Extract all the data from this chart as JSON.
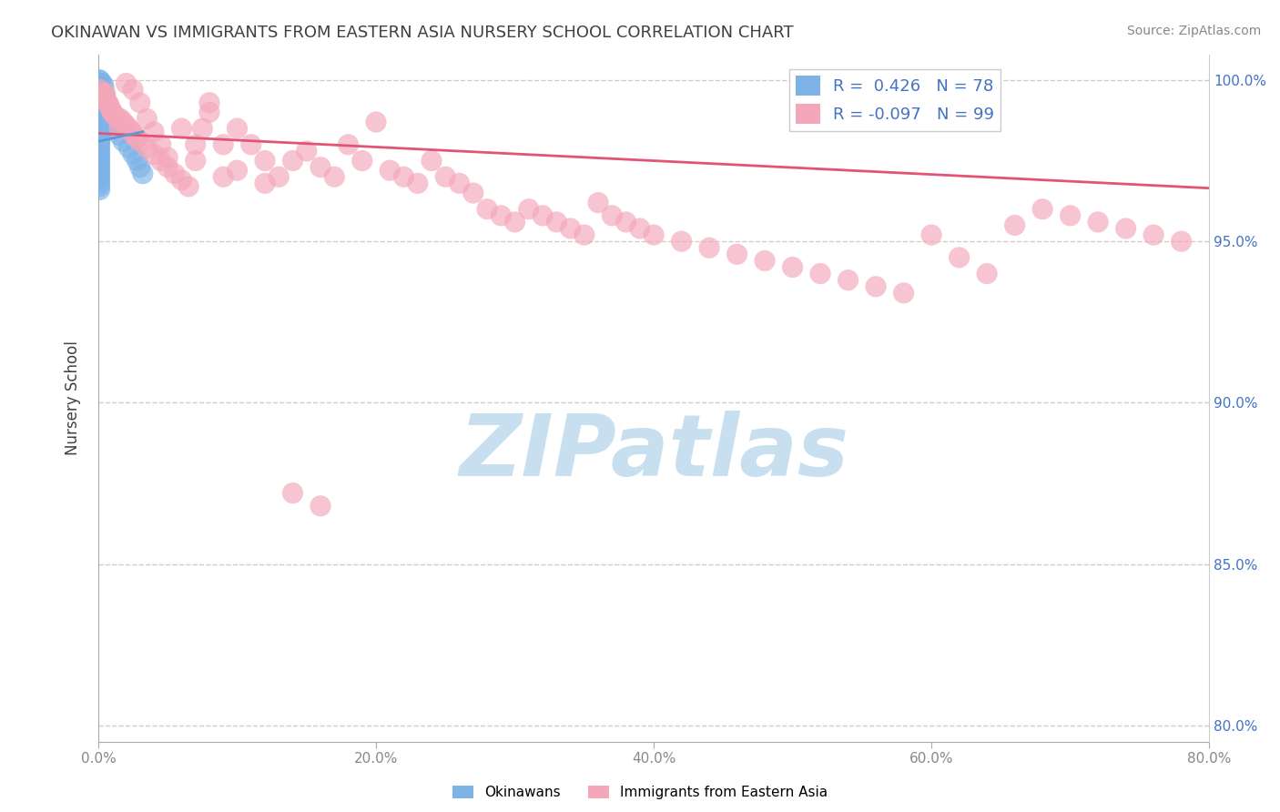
{
  "title": "OKINAWAN VS IMMIGRANTS FROM EASTERN ASIA NURSERY SCHOOL CORRELATION CHART",
  "source": "Source: ZipAtlas.com",
  "ylabel": "Nursery School",
  "xlim": [
    0.0,
    0.8
  ],
  "ylim": [
    0.795,
    1.008
  ],
  "xtick_labels": [
    "0.0%",
    "20.0%",
    "40.0%",
    "60.0%",
    "80.0%"
  ],
  "xtick_vals": [
    0.0,
    0.2,
    0.4,
    0.6,
    0.8
  ],
  "ytick_labels": [
    "80.0%",
    "85.0%",
    "90.0%",
    "95.0%",
    "100.0%"
  ],
  "ytick_vals": [
    0.8,
    0.85,
    0.9,
    0.95,
    1.0
  ],
  "okinawan_color": "#7eb3e8",
  "immigrant_color": "#f4a7b9",
  "okinawan_R": 0.426,
  "okinawan_N": 78,
  "immigrant_R": -0.097,
  "immigrant_N": 99,
  "trend_blue_color": "#5b9bd5",
  "trend_pink_color": "#e05575",
  "watermark": "ZIPatlas",
  "watermark_color": "#c8dff0",
  "legend_label_okinawan": "Okinawans",
  "legend_label_immigrant": "Immigrants from Eastern Asia",
  "background_color": "#ffffff",
  "grid_color": "#d8c8c8",
  "title_color": "#404040",
  "axis_label_color": "#404040",
  "okinawan_x": [
    0.0005,
    0.001,
    0.001,
    0.001,
    0.001,
    0.001,
    0.001,
    0.001,
    0.001,
    0.001,
    0.001,
    0.001,
    0.001,
    0.001,
    0.001,
    0.001,
    0.001,
    0.001,
    0.001,
    0.001,
    0.001,
    0.001,
    0.001,
    0.001,
    0.001,
    0.001,
    0.001,
    0.001,
    0.001,
    0.001,
    0.001,
    0.001,
    0.001,
    0.001,
    0.001,
    0.001,
    0.001,
    0.001,
    0.001,
    0.001,
    0.001,
    0.001,
    0.001,
    0.001,
    0.001,
    0.001,
    0.001,
    0.001,
    0.001,
    0.001,
    0.001,
    0.001,
    0.001,
    0.001,
    0.001,
    0.001,
    0.001,
    0.001,
    0.001,
    0.001,
    0.002,
    0.002,
    0.003,
    0.003,
    0.004,
    0.005,
    0.006,
    0.007,
    0.008,
    0.01,
    0.012,
    0.015,
    0.018,
    0.022,
    0.025,
    0.028,
    0.03,
    0.032
  ],
  "okinawan_y": [
    1.0,
    1.0,
    0.999,
    0.999,
    0.998,
    0.998,
    0.997,
    0.997,
    0.997,
    0.996,
    0.996,
    0.996,
    0.995,
    0.995,
    0.995,
    0.994,
    0.994,
    0.994,
    0.993,
    0.993,
    0.993,
    0.992,
    0.992,
    0.991,
    0.991,
    0.99,
    0.99,
    0.99,
    0.989,
    0.989,
    0.988,
    0.988,
    0.987,
    0.987,
    0.986,
    0.986,
    0.985,
    0.985,
    0.984,
    0.984,
    0.983,
    0.983,
    0.982,
    0.981,
    0.981,
    0.98,
    0.979,
    0.978,
    0.977,
    0.976,
    0.975,
    0.974,
    0.973,
    0.972,
    0.971,
    0.97,
    0.969,
    0.968,
    0.967,
    0.966,
    0.998,
    0.997,
    0.999,
    0.996,
    0.998,
    0.995,
    0.993,
    0.991,
    0.989,
    0.987,
    0.985,
    0.983,
    0.981,
    0.979,
    0.977,
    0.975,
    0.973,
    0.971
  ],
  "immigrant_x": [
    0.001,
    0.002,
    0.003,
    0.004,
    0.005,
    0.006,
    0.007,
    0.008,
    0.009,
    0.01,
    0.012,
    0.014,
    0.016,
    0.018,
    0.02,
    0.022,
    0.024,
    0.026,
    0.028,
    0.03,
    0.035,
    0.04,
    0.045,
    0.05,
    0.055,
    0.06,
    0.065,
    0.07,
    0.075,
    0.08,
    0.09,
    0.1,
    0.11,
    0.12,
    0.13,
    0.14,
    0.15,
    0.16,
    0.17,
    0.18,
    0.19,
    0.2,
    0.21,
    0.22,
    0.23,
    0.24,
    0.25,
    0.26,
    0.27,
    0.28,
    0.29,
    0.3,
    0.31,
    0.32,
    0.33,
    0.34,
    0.35,
    0.36,
    0.37,
    0.38,
    0.39,
    0.4,
    0.42,
    0.44,
    0.46,
    0.48,
    0.5,
    0.52,
    0.54,
    0.56,
    0.58,
    0.6,
    0.62,
    0.64,
    0.66,
    0.68,
    0.7,
    0.72,
    0.74,
    0.76,
    0.78,
    0.005,
    0.01,
    0.015,
    0.02,
    0.025,
    0.03,
    0.035,
    0.04,
    0.045,
    0.05,
    0.06,
    0.07,
    0.08,
    0.09,
    0.1,
    0.12,
    0.14,
    0.16
  ],
  "immigrant_y": [
    0.997,
    0.996,
    0.996,
    0.995,
    0.994,
    0.993,
    0.993,
    0.992,
    0.991,
    0.99,
    0.989,
    0.988,
    0.988,
    0.987,
    0.986,
    0.985,
    0.984,
    0.983,
    0.982,
    0.981,
    0.979,
    0.977,
    0.975,
    0.973,
    0.971,
    0.969,
    0.967,
    0.975,
    0.985,
    0.993,
    0.98,
    0.985,
    0.98,
    0.975,
    0.97,
    0.975,
    0.978,
    0.973,
    0.97,
    0.98,
    0.975,
    0.987,
    0.972,
    0.97,
    0.968,
    0.975,
    0.97,
    0.968,
    0.965,
    0.96,
    0.958,
    0.956,
    0.96,
    0.958,
    0.956,
    0.954,
    0.952,
    0.962,
    0.958,
    0.956,
    0.954,
    0.952,
    0.95,
    0.948,
    0.946,
    0.944,
    0.942,
    0.94,
    0.938,
    0.936,
    0.934,
    0.952,
    0.945,
    0.94,
    0.955,
    0.96,
    0.958,
    0.956,
    0.954,
    0.952,
    0.95,
    0.996,
    0.99,
    0.985,
    0.999,
    0.997,
    0.993,
    0.988,
    0.984,
    0.98,
    0.976,
    0.985,
    0.98,
    0.99,
    0.97,
    0.972,
    0.968,
    0.872,
    0.868
  ],
  "pink_trend_x0": 0.0,
  "pink_trend_y0": 0.9835,
  "pink_trend_x1": 0.8,
  "pink_trend_y1": 0.9665,
  "blue_trend_x0": 0.0,
  "blue_trend_y0": 0.981,
  "blue_trend_x1": 0.032,
  "blue_trend_y1": 0.984
}
